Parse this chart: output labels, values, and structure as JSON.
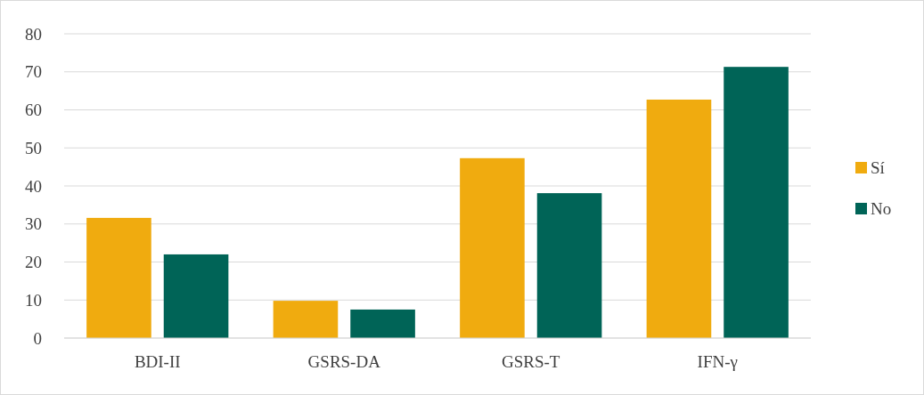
{
  "chart_data": {
    "type": "bar",
    "categories": [
      "BDI-II",
      "GSRS-DA",
      "GSRS-T",
      "IFN-γ"
    ],
    "series": [
      {
        "name": "Sí",
        "color": "#f0ab0f",
        "values": [
          31.6,
          9.8,
          47.3,
          62.7
        ]
      },
      {
        "name": "No",
        "color": "#006457",
        "values": [
          22,
          7.5,
          38.1,
          71.3
        ]
      }
    ],
    "ylim": [
      0,
      80
    ],
    "yticks": [
      0,
      10,
      20,
      30,
      40,
      50,
      60,
      70,
      80
    ],
    "grid": "y",
    "legend": "right"
  }
}
